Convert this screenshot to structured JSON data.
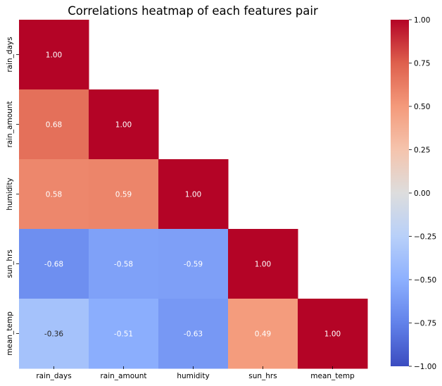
{
  "chart_data": {
    "type": "heatmap",
    "title": "Correlations heatmap of each features pair",
    "xlabel": "",
    "ylabel": "",
    "x_categories": [
      "rain_days",
      "rain_amount",
      "humidity",
      "sun_hrs",
      "mean_temp"
    ],
    "y_categories": [
      "rain_days",
      "rain_amount",
      "humidity",
      "sun_hrs",
      "mean_temp"
    ],
    "mask": "upper-triangle",
    "values": [
      [
        1.0,
        null,
        null,
        null,
        null
      ],
      [
        0.68,
        1.0,
        null,
        null,
        null
      ],
      [
        0.58,
        0.59,
        1.0,
        null,
        null
      ],
      [
        -0.68,
        -0.58,
        -0.59,
        1.0,
        null
      ],
      [
        -0.36,
        -0.51,
        -0.63,
        0.49,
        1.0
      ]
    ],
    "value_format": "2-decimals",
    "colormap": "coolwarm",
    "vmin": -1.0,
    "vmax": 1.0,
    "colorbar": {
      "placement": "right",
      "ticks": [
        "1.00",
        "0.75",
        "0.50",
        "0.25",
        "0.00",
        "−0.25",
        "−0.50",
        "−0.75",
        "−1.00"
      ],
      "tick_values": [
        1.0,
        0.75,
        0.5,
        0.25,
        0.0,
        -0.25,
        -0.5,
        -0.75,
        -1.0
      ]
    },
    "grid": false
  }
}
